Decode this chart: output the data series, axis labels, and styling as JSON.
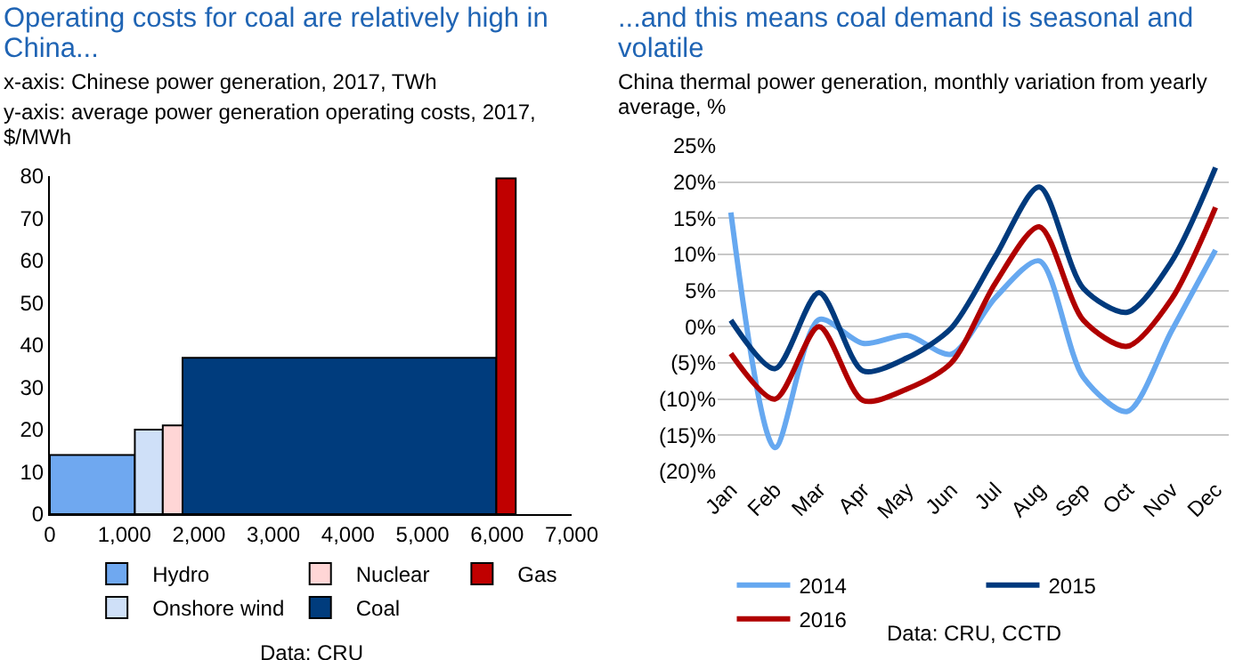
{
  "chart_data": [
    {
      "type": "histogram",
      "title": "Operating costs for coal are relatively high in China...",
      "xlabel": "x-axis: Chinese power generation, 2017, TWh",
      "ylabel": "y-axis: average power generation operating costs, 2017, $/MWh",
      "bins": [
        0,
        1140,
        1515,
        1780,
        5990,
        6250
      ],
      "series": [
        {
          "name": "Hydro",
          "color": "#6fa8f0",
          "values": [
            14,
            null,
            null,
            null,
            null
          ]
        },
        {
          "name": "Onshore wind",
          "color": "#cfe0f8",
          "values": [
            null,
            20,
            null,
            null,
            null
          ]
        },
        {
          "name": "Nuclear",
          "color": "#ffd6d6",
          "values": [
            null,
            null,
            21,
            null,
            null
          ]
        },
        {
          "name": "Coal",
          "color": "#003c7d",
          "values": [
            null,
            null,
            null,
            37,
            null
          ]
        },
        {
          "name": "Gas",
          "color": "#c00000",
          "values": [
            null,
            null,
            null,
            null,
            79.5
          ]
        }
      ],
      "xlim": [
        0,
        7000
      ],
      "xticks": [
        0,
        {
          "value": 1000,
          "label": "1,000"
        },
        {
          "value": 2000,
          "label": "2,000"
        },
        {
          "value": 3000,
          "label": "3,000"
        },
        {
          "value": 4000,
          "label": "4,000"
        },
        {
          "value": 5000,
          "label": "5,000"
        },
        {
          "value": 6000,
          "label": "6,000"
        },
        {
          "value": 7000,
          "label": "7,000"
        }
      ],
      "ylim": [
        0,
        80
      ],
      "yticks": [
        0,
        10,
        20,
        30,
        40,
        50,
        60,
        70,
        80
      ],
      "grid": false,
      "legend": "bottom",
      "annotations": [
        "Data: CRU"
      ]
    },
    {
      "type": "line",
      "title": "...and this means coal demand is seasonal and volatile",
      "subtitle": "China thermal power generation, monthly variation from yearly average, %",
      "categories": [
        "Jan",
        "Feb",
        "Mar",
        "Apr",
        "May",
        "Jun",
        "Jul",
        "Aug",
        "Sep",
        "Oct",
        "Nov",
        "Dec"
      ],
      "series": [
        {
          "name": "2014",
          "color": "#66a8f0",
          "values": [
            15.8,
            -16.7,
            1.0,
            -2.3,
            -1.2,
            -3.8,
            4.0,
            9.1,
            -7.0,
            -11.7,
            -0.6,
            10.6
          ]
        },
        {
          "name": "2015",
          "color": "#003a7d",
          "values": [
            0.9,
            -5.8,
            4.7,
            -6.1,
            -4.3,
            -0.2,
            9.7,
            19.3,
            5.3,
            2.0,
            9.0,
            22.0
          ]
        },
        {
          "name": "2016",
          "color": "#b00000",
          "values": [
            -3.7,
            -10.0,
            0,
            -10.2,
            -8.6,
            -5.0,
            6.0,
            13.8,
            0.9,
            -2.7,
            3.8,
            16.5
          ]
        }
      ],
      "ylim": [
        -20,
        25
      ],
      "yticks": [
        {
          "value": -20,
          "label": "(20)%"
        },
        {
          "value": -15,
          "label": "(15)%"
        },
        {
          "value": -10,
          "label": "(10)%"
        },
        {
          "value": -5,
          "label": "(5)%"
        },
        {
          "value": 0,
          "label": "0%"
        },
        {
          "value": 5,
          "label": "5%"
        },
        {
          "value": 10,
          "label": "10%"
        },
        {
          "value": 15,
          "label": "15%"
        },
        {
          "value": 20,
          "label": "20%"
        },
        {
          "value": 25,
          "label": "25%"
        }
      ],
      "grid": "y",
      "legend": "bottom",
      "marker": "none",
      "line_style": "solid",
      "annotations": [
        "Data: CRU, CCTD"
      ]
    }
  ]
}
